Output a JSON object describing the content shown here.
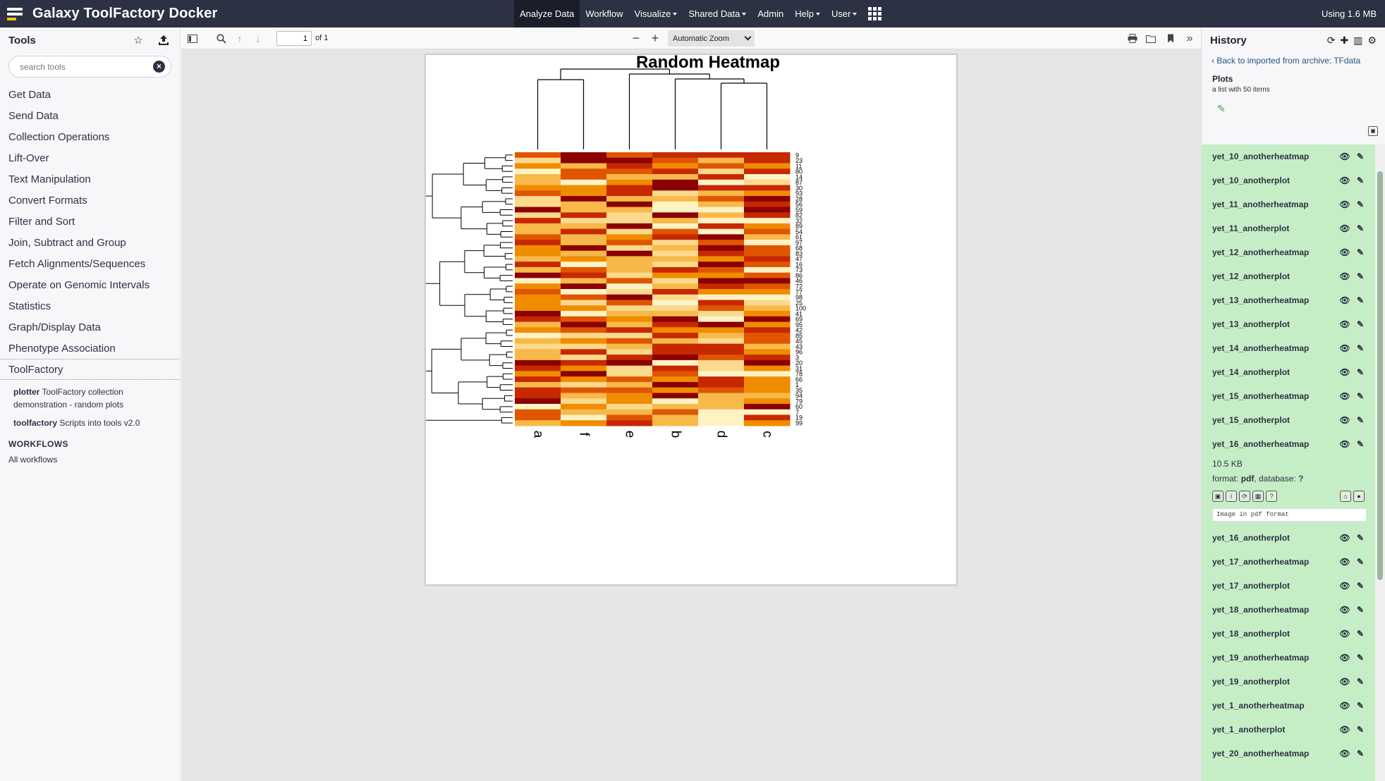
{
  "masthead": {
    "title": "Galaxy ToolFactory Docker",
    "nav": [
      "Analyze Data",
      "Workflow",
      "Visualize",
      "Shared Data",
      "Admin",
      "Help",
      "User"
    ],
    "quota": "Using 1.6 MB"
  },
  "tool_panel": {
    "title": "Tools",
    "search_placeholder": "search tools",
    "sections": [
      "Get Data",
      "Send Data",
      "Collection Operations",
      "Lift-Over",
      "Text Manipulation",
      "Convert Formats",
      "Filter and Sort",
      "Join, Subtract and Group",
      "Fetch Alignments/Sequences",
      "Operate on Genomic Intervals",
      "Statistics",
      "Graph/Display Data",
      "Phenotype Association",
      "ToolFactory"
    ],
    "tools": [
      {
        "name": "plotter",
        "desc": "ToolFactory collection demonstration - random plots"
      },
      {
        "name": "toolfactory",
        "desc": "Scripts into tools v2.0"
      }
    ],
    "workflows_heading": "WORKFLOWS",
    "all_workflows": "All workflows"
  },
  "pdf_viewer": {
    "page_number": "1",
    "page_count": "of 1",
    "zoom": "Automatic Zoom"
  },
  "chart_data": {
    "type": "heatmap",
    "title": "Random Heatmap",
    "columns": [
      "a",
      "f",
      "e",
      "b",
      "d",
      "c"
    ],
    "row_labels": [
      "9",
      "23",
      "11",
      "80",
      "14",
      "87",
      "30",
      "93",
      "28",
      "56",
      "59",
      "82",
      "32",
      "89",
      "54",
      "61",
      "97",
      "68",
      "83",
      "47",
      "16",
      "73",
      "86",
      "46",
      "72",
      "77",
      "98",
      "25",
      "100",
      "41",
      "69",
      "95",
      "42",
      "85",
      "45",
      "43",
      "96",
      "3",
      "20",
      "31",
      "78",
      "66",
      "1",
      "35",
      "94",
      "79",
      "60",
      "7",
      "19",
      "99"
    ],
    "colormap": "heat (red = high, pale yellow = low)",
    "colors": [
      "#8b0000",
      "#c62800",
      "#e05500",
      "#f08c00",
      "#f7b94a",
      "#fbd98d",
      "#fff3c4"
    ]
  },
  "history": {
    "title": "History",
    "back_link": "Back to imported from archive: TFdata",
    "collection_name": "Plots",
    "collection_desc": "a list with 50 items",
    "items": [
      "yet_10_anotherheatmap",
      "yet_10_anotherplot",
      "yet_11_anotherheatmap",
      "yet_11_anotherplot",
      "yet_12_anotherheatmap",
      "yet_12_anotherplot",
      "yet_13_anotherheatmap",
      "yet_13_anotherplot",
      "yet_14_anotherheatmap",
      "yet_14_anotherplot",
      "yet_15_anotherheatmap",
      "yet_15_anotherplot",
      "yet_16_anotherheatmap"
    ],
    "expanded": {
      "size": "10.5 KB",
      "format_label": "format:",
      "format": "pdf",
      "database_label": ", database:",
      "database": "?",
      "peek": "Image in pdf format"
    },
    "items_after": [
      "yet_16_anotherplot",
      "yet_17_anotherheatmap",
      "yet_17_anotherplot",
      "yet_18_anotherheatmap",
      "yet_18_anotherplot",
      "yet_19_anotherheatmap",
      "yet_19_anotherplot",
      "yet_1_anotherheatmap",
      "yet_1_anotherplot",
      "yet_20_anotherheatmap"
    ]
  }
}
